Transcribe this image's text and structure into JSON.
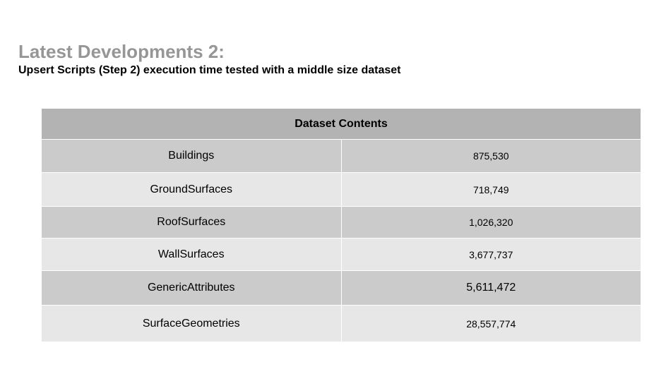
{
  "slide": {
    "title": "Latest Developments 2:",
    "subtitle": "Upsert Scripts (Step 2) execution time tested with a middle size dataset"
  },
  "table": {
    "header": "Dataset Contents",
    "rows": [
      {
        "label": "Buildings",
        "value": "875,530"
      },
      {
        "label": "GroundSurfaces",
        "value": "718,749"
      },
      {
        "label": "RoofSurfaces",
        "value": "1,026,320"
      },
      {
        "label": "WallSurfaces",
        "value": "3,677,737"
      },
      {
        "label": "GenericAttributes",
        "value": "5,611,472"
      },
      {
        "label": "SurfaceGeometries",
        "value": "28,557,774"
      }
    ]
  },
  "colors": {
    "title": "#969696",
    "header_bg": "#b3b3b3",
    "row_dark": "#cbcbcb",
    "row_light": "#e7e7e7"
  }
}
